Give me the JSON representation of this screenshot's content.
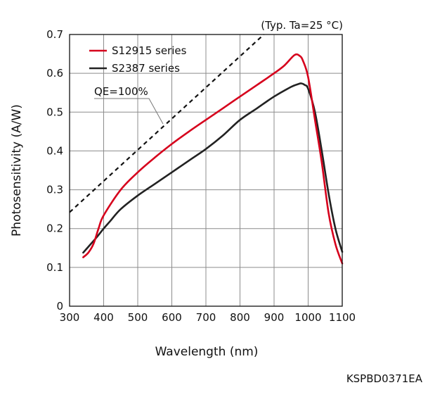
{
  "chart_data": {
    "type": "line",
    "note": "(Typ. Ta=25 °C)",
    "xlabel": "Wavelength (nm)",
    "ylabel": "Photosensitivity (A/W)",
    "xlim": [
      300,
      1100
    ],
    "ylim": [
      0,
      0.7
    ],
    "xticks": [
      300,
      400,
      500,
      600,
      700,
      800,
      900,
      1000,
      1100
    ],
    "yticks": [
      0,
      0.1,
      0.2,
      0.3,
      0.4,
      0.5,
      0.6,
      0.7
    ],
    "ytick_labels": [
      "0",
      "0.1",
      "0.2",
      "0.3",
      "0.4",
      "0.5",
      "0.6",
      "0.7"
    ],
    "grid": true,
    "legend_position": "top-left",
    "series": [
      {
        "name": "S12915 series",
        "color": "#d6001c",
        "x": [
          340,
          355,
          370,
          385,
          400,
          450,
          500,
          550,
          600,
          650,
          700,
          750,
          800,
          850,
          900,
          930,
          960,
          975,
          985,
          1000,
          1020,
          1040,
          1060,
          1080,
          1100
        ],
        "y": [
          0.126,
          0.138,
          0.16,
          0.2,
          0.234,
          0.3,
          0.345,
          0.383,
          0.418,
          0.45,
          0.48,
          0.51,
          0.54,
          0.57,
          0.6,
          0.62,
          0.647,
          0.645,
          0.632,
          0.59,
          0.48,
          0.37,
          0.24,
          0.16,
          0.11
        ]
      },
      {
        "name": "S2387 series",
        "color": "#222222",
        "x": [
          340,
          360,
          380,
          400,
          420,
          450,
          500,
          550,
          600,
          650,
          700,
          750,
          800,
          850,
          900,
          950,
          970,
          980,
          990,
          1000,
          1020,
          1040,
          1060,
          1080,
          1100
        ],
        "y": [
          0.138,
          0.158,
          0.178,
          0.2,
          0.22,
          0.25,
          0.285,
          0.315,
          0.345,
          0.375,
          0.405,
          0.44,
          0.48,
          0.51,
          0.54,
          0.565,
          0.572,
          0.574,
          0.57,
          0.56,
          0.5,
          0.4,
          0.29,
          0.2,
          0.14
        ]
      }
    ],
    "reference_line": {
      "label": "QE=100%",
      "x": [
        300,
        870
      ],
      "y": [
        0.242,
        0.7
      ]
    }
  },
  "document_code": "KSPBD0371EA"
}
